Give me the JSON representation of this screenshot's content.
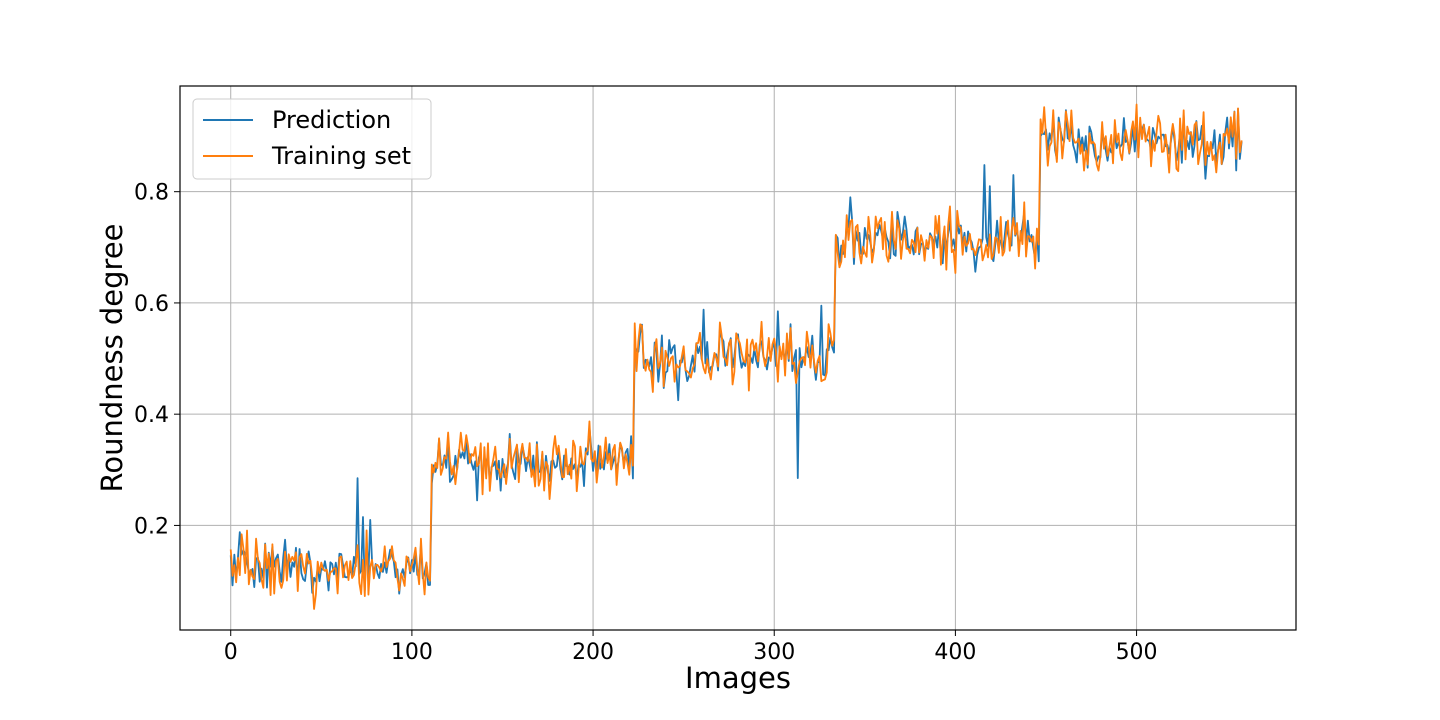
{
  "chart_data": {
    "type": "line",
    "title": "",
    "xlabel": "Images",
    "ylabel": "Roundness degree",
    "xlim": [
      -28,
      588
    ],
    "ylim": [
      0.012,
      0.99
    ],
    "xticks": [
      0,
      100,
      200,
      300,
      400,
      500
    ],
    "yticks": [
      0.2,
      0.4,
      0.6,
      0.8
    ],
    "grid": true,
    "legend_position": "top-left",
    "groups": [
      {
        "start": 0,
        "end": 110,
        "level": 0.125
      },
      {
        "start": 111,
        "end": 222,
        "level": 0.31
      },
      {
        "start": 223,
        "end": 333,
        "level": 0.505
      },
      {
        "start": 334,
        "end": 446,
        "level": 0.715
      },
      {
        "start": 447,
        "end": 558,
        "level": 0.895
      }
    ],
    "spikes": [
      {
        "x": 70,
        "y": 0.285
      },
      {
        "x": 73,
        "y": 0.215
      },
      {
        "x": 77,
        "y": 0.21
      },
      {
        "x": 5,
        "y": 0.188
      },
      {
        "x": 313,
        "y": 0.285
      },
      {
        "x": 302,
        "y": 0.585
      },
      {
        "x": 326,
        "y": 0.595
      },
      {
        "x": 261,
        "y": 0.588
      },
      {
        "x": 416,
        "y": 0.848
      },
      {
        "x": 419,
        "y": 0.81
      },
      {
        "x": 432,
        "y": 0.83
      },
      {
        "x": 247,
        "y": 0.425
      },
      {
        "x": 136,
        "y": 0.245
      },
      {
        "x": 342,
        "y": 0.79
      }
    ],
    "series": [
      {
        "name": "Prediction",
        "color": "#1f77b4"
      },
      {
        "name": "Training set",
        "color": "#ff7f0e"
      }
    ]
  }
}
